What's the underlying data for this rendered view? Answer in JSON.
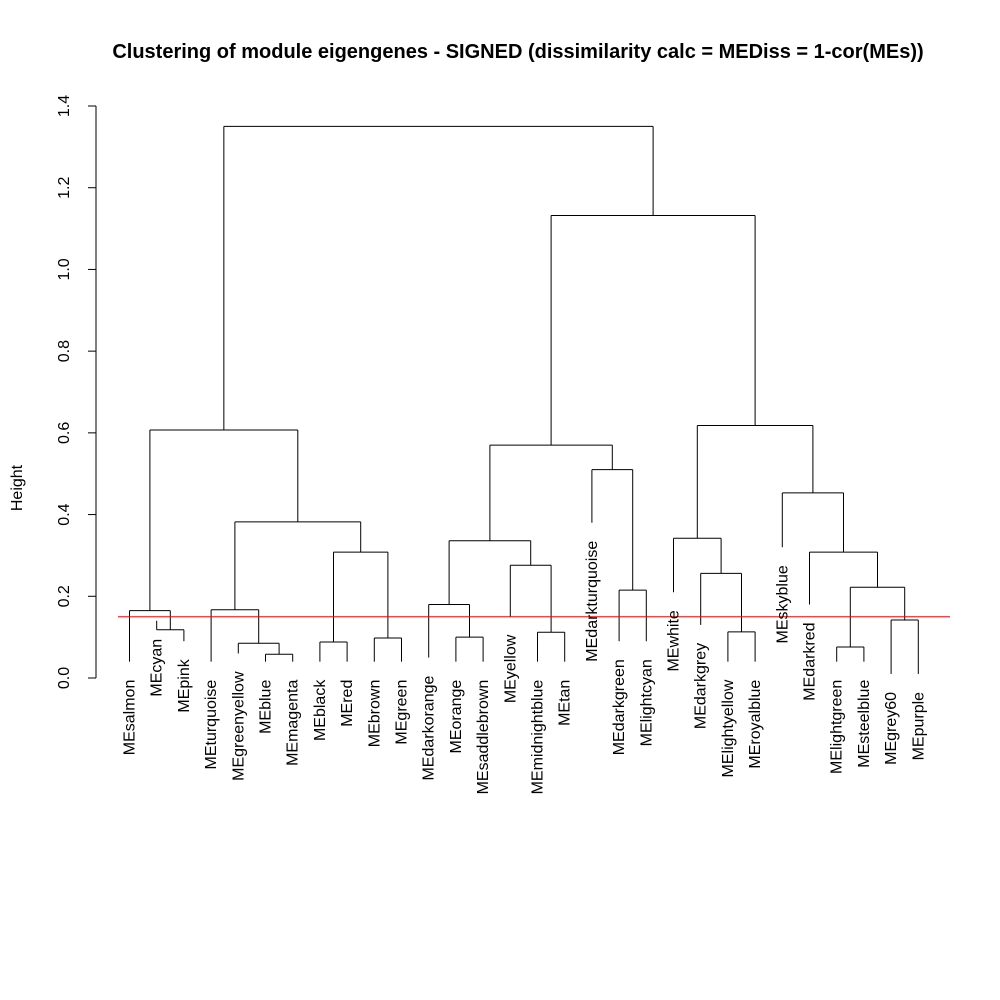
{
  "chart_data": {
    "type": "dendrogram",
    "title": "Clustering of module eigengenes - SIGNED (dissimilarity calc = MEDiss = 1-cor(MEs))",
    "ylabel": "Height",
    "xlabel": "",
    "ylim": [
      0,
      1.4
    ],
    "yticks": [
      0.0,
      0.2,
      0.4,
      0.6,
      0.8,
      1.0,
      1.2,
      1.4
    ],
    "ytick_labels": [
      "0.0",
      "0.2",
      "0.4",
      "0.6",
      "0.8",
      "1.0",
      "1.2",
      "1.4"
    ],
    "cut_height": 0.15,
    "cut_line_color": "#ff0000",
    "line_color": "#000000",
    "leaves": [
      {
        "label": "MEsalmon",
        "height": 0.04
      },
      {
        "label": "MEcyan",
        "height": 0.14
      },
      {
        "label": "MEpink",
        "height": 0.09
      },
      {
        "label": "MEturquoise",
        "height": 0.04
      },
      {
        "label": "MEgreenyellow",
        "height": 0.06
      },
      {
        "label": "MEblue",
        "height": 0.04
      },
      {
        "label": "MEmagenta",
        "height": 0.04
      },
      {
        "label": "MEblack",
        "height": 0.04
      },
      {
        "label": "MEred",
        "height": 0.04
      },
      {
        "label": "MEbrown",
        "height": 0.04
      },
      {
        "label": "MEgreen",
        "height": 0.04
      },
      {
        "label": "MEdarkorange",
        "height": 0.05
      },
      {
        "label": "MEorange",
        "height": 0.04
      },
      {
        "label": "MEsaddlebrown",
        "height": 0.04
      },
      {
        "label": "MEyellow",
        "height": 0.15
      },
      {
        "label": "MEmidnightblue",
        "height": 0.04
      },
      {
        "label": "MEtan",
        "height": 0.04
      },
      {
        "label": "MEdarkturquoise",
        "height": 0.38
      },
      {
        "label": "MEdarkgreen",
        "height": 0.09
      },
      {
        "label": "MElightcyan",
        "height": 0.09
      },
      {
        "label": "MEwhite",
        "height": 0.21
      },
      {
        "label": "MEdarkgrey",
        "height": 0.13
      },
      {
        "label": "MElightyellow",
        "height": 0.04
      },
      {
        "label": "MEroyalblue",
        "height": 0.04
      },
      {
        "label": "MEskyblue",
        "height": 0.32
      },
      {
        "label": "MEdarkred",
        "height": 0.18
      },
      {
        "label": "MElightgreen",
        "height": 0.04
      },
      {
        "label": "MEsteelblue",
        "height": 0.04
      },
      {
        "label": "MEgrey60",
        "height": 0.01
      },
      {
        "label": "MEpurple",
        "height": 0.01
      }
    ],
    "merges": [
      {
        "id": "m1",
        "left": "L1",
        "right": "L2",
        "height": 0.118
      },
      {
        "id": "m2",
        "left": "L0",
        "right": "m1",
        "height": 0.165
      },
      {
        "id": "m3",
        "left": "L5",
        "right": "L6",
        "height": 0.058
      },
      {
        "id": "m4",
        "left": "L4",
        "right": "m3",
        "height": 0.085
      },
      {
        "id": "m5",
        "left": "L3",
        "right": "m4",
        "height": 0.167
      },
      {
        "id": "m6",
        "left": "L7",
        "right": "L8",
        "height": 0.088
      },
      {
        "id": "m7",
        "left": "L9",
        "right": "L10",
        "height": 0.098
      },
      {
        "id": "m8",
        "left": "m6",
        "right": "m7",
        "height": 0.308
      },
      {
        "id": "m9",
        "left": "m5",
        "right": "m8",
        "height": 0.382
      },
      {
        "id": "m10",
        "left": "m2",
        "right": "m9",
        "height": 0.607
      },
      {
        "id": "m11",
        "left": "L12",
        "right": "L13",
        "height": 0.1
      },
      {
        "id": "m12",
        "left": "L11",
        "right": "m11",
        "height": 0.18
      },
      {
        "id": "m13",
        "left": "L15",
        "right": "L16",
        "height": 0.112
      },
      {
        "id": "m14",
        "left": "L14",
        "right": "m13",
        "height": 0.276
      },
      {
        "id": "m15",
        "left": "m12",
        "right": "m14",
        "height": 0.336
      },
      {
        "id": "m16",
        "left": "L18",
        "right": "L19",
        "height": 0.215
      },
      {
        "id": "m17",
        "left": "L17",
        "right": "m16",
        "height": 0.51
      },
      {
        "id": "m18",
        "left": "m15",
        "right": "m17",
        "height": 0.57
      },
      {
        "id": "m19",
        "left": "L22",
        "right": "L23",
        "height": 0.113
      },
      {
        "id": "m20",
        "left": "L21",
        "right": "m19",
        "height": 0.256
      },
      {
        "id": "m21",
        "left": "L20",
        "right": "m20",
        "height": 0.342
      },
      {
        "id": "m22",
        "left": "L28",
        "right": "L29",
        "height": 0.142
      },
      {
        "id": "m23",
        "left": "L26",
        "right": "L27",
        "height": 0.076
      },
      {
        "id": "m24",
        "left": "m23",
        "right": "m22",
        "height": 0.222
      },
      {
        "id": "m25",
        "left": "L25",
        "right": "m24",
        "height": 0.308
      },
      {
        "id": "m26",
        "left": "L24",
        "right": "m25",
        "height": 0.453
      },
      {
        "id": "m27",
        "left": "m21",
        "right": "m26",
        "height": 0.618
      },
      {
        "id": "m28",
        "left": "m18",
        "right": "m27",
        "height": 1.132
      },
      {
        "id": "m29",
        "left": "m10",
        "right": "m28",
        "height": 1.35
      }
    ]
  }
}
